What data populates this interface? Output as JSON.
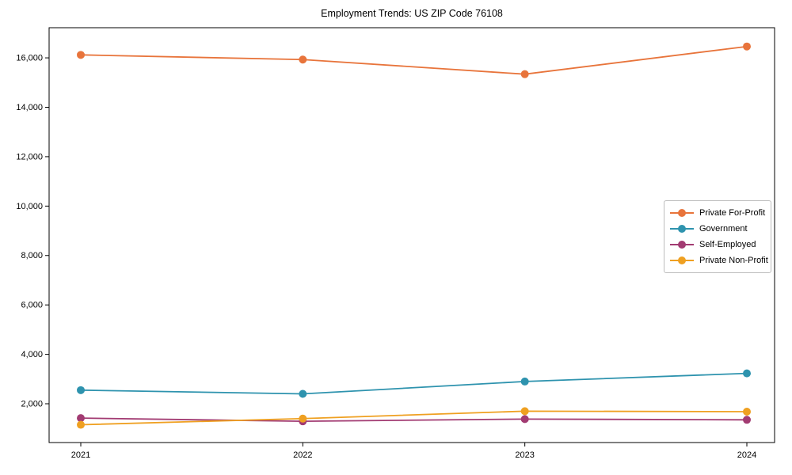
{
  "chart_data": {
    "type": "line",
    "title": "Employment Trends: US ZIP Code 76108",
    "xlabel": "",
    "ylabel": "",
    "categories": [
      2021,
      2022,
      2023,
      2024
    ],
    "series": [
      {
        "name": "Private For-Profit",
        "color": "#e8743b",
        "values": [
          16120,
          15930,
          15340,
          16460
        ]
      },
      {
        "name": "Government",
        "color": "#2e93ae",
        "values": [
          2550,
          2400,
          2900,
          3230
        ]
      },
      {
        "name": "Self-Employed",
        "color": "#a23b72",
        "values": [
          1420,
          1290,
          1380,
          1350
        ]
      },
      {
        "name": "Private Non-Profit",
        "color": "#efa021",
        "values": [
          1150,
          1400,
          1700,
          1680
        ]
      }
    ],
    "yticks": [
      2000,
      4000,
      6000,
      8000,
      10000,
      12000,
      14000,
      16000
    ],
    "ylim": [
      430,
      17220
    ],
    "grid": false,
    "legend_position": "center right",
    "marker": "circle"
  }
}
